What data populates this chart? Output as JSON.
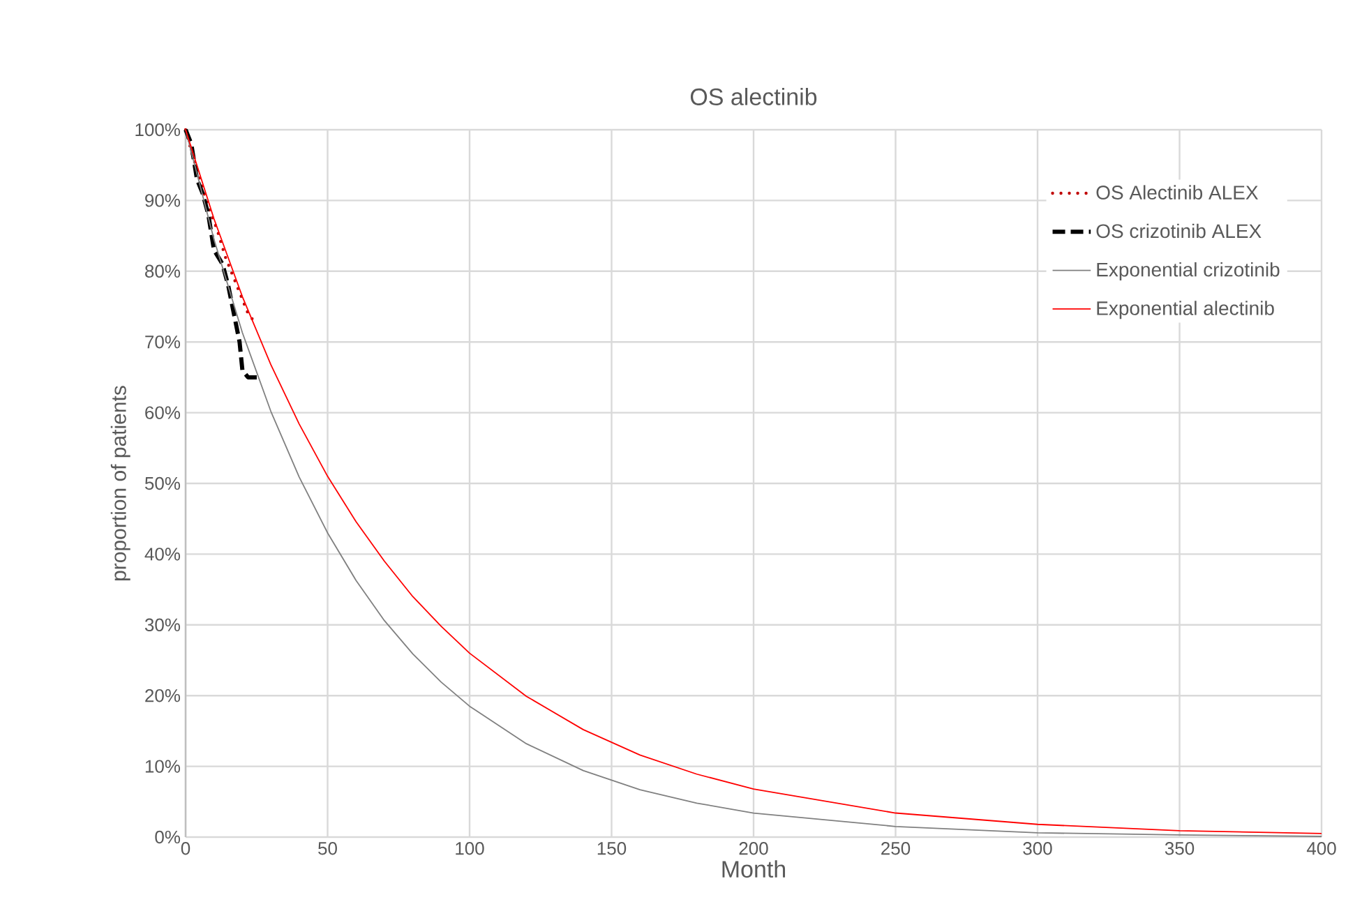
{
  "chart_data": {
    "type": "line",
    "title": "OS alectinib",
    "xlabel": "Month",
    "ylabel": "proportion of patients",
    "xlim": [
      0,
      400
    ],
    "xticks": [
      0,
      50,
      100,
      150,
      200,
      250,
      300,
      350,
      400
    ],
    "ylim": [
      0,
      100
    ],
    "yticks": [
      {
        "value": 0,
        "label": "0%"
      },
      {
        "value": 10,
        "label": "10%"
      },
      {
        "value": 20,
        "label": "20%"
      },
      {
        "value": 30,
        "label": "30%"
      },
      {
        "value": 40,
        "label": "40%"
      },
      {
        "value": 50,
        "label": "50%"
      },
      {
        "value": 60,
        "label": "60%"
      },
      {
        "value": 70,
        "label": "70%"
      },
      {
        "value": 80,
        "label": "80%"
      },
      {
        "value": 90,
        "label": "90%"
      },
      {
        "value": 100,
        "label": "100%"
      }
    ],
    "grid": true,
    "legend": "top right",
    "series": [
      {
        "name": "OS Alectinib ALEX",
        "color": "#c00000",
        "line_style": "dotted",
        "x": [
          0,
          2,
          5,
          8,
          11,
          14,
          17,
          20,
          22,
          24,
          25
        ],
        "values": [
          100,
          97,
          93,
          89,
          86,
          82,
          79,
          76,
          74,
          73,
          72.5
        ]
      },
      {
        "name": "OS crizotinib ALEX",
        "color": "#000000",
        "line_style": "dashed",
        "x": [
          0,
          2,
          4,
          6,
          8,
          10,
          13,
          15,
          17,
          19,
          20,
          22,
          26
        ],
        "values": [
          100,
          98,
          93,
          91,
          88,
          83,
          81,
          78,
          74,
          70,
          66,
          65,
          65
        ]
      },
      {
        "name": "Exponential crizotinib",
        "color": "#808080",
        "line_style": "solid",
        "x": [
          0,
          10,
          20,
          30,
          40,
          50,
          60,
          70,
          80,
          90,
          100,
          120,
          140,
          160,
          180,
          200,
          250,
          300,
          350,
          400
        ],
        "values": [
          100,
          84.5,
          71.3,
          60.2,
          50.9,
          43.0,
          36.3,
          30.6,
          25.9,
          21.9,
          18.5,
          13.2,
          9.4,
          6.7,
          4.8,
          3.4,
          1.5,
          0.6,
          0.3,
          0.1
        ]
      },
      {
        "name": "Exponential alectinib",
        "color": "#ff0000",
        "line_style": "solid",
        "x": [
          0,
          10,
          20,
          30,
          40,
          50,
          60,
          70,
          80,
          90,
          100,
          120,
          140,
          160,
          180,
          200,
          250,
          300,
          350,
          400
        ],
        "values": [
          100,
          87.4,
          76.4,
          66.8,
          58.4,
          51.0,
          44.6,
          39.0,
          34.0,
          29.8,
          26.0,
          19.9,
          15.2,
          11.6,
          8.9,
          6.8,
          3.4,
          1.8,
          0.9,
          0.5
        ]
      }
    ]
  }
}
